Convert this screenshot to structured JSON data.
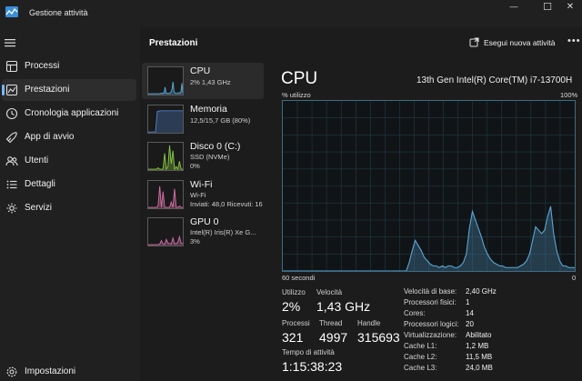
{
  "window": {
    "title": "Gestione attività",
    "controls": {
      "minimize": "—",
      "maximize": "☐",
      "close": "✕"
    }
  },
  "sidebar": {
    "items": [
      {
        "label": "Processi",
        "icon": "processes-icon"
      },
      {
        "label": "Prestazioni",
        "icon": "performance-icon",
        "active": true
      },
      {
        "label": "Cronologia applicazioni",
        "icon": "history-icon"
      },
      {
        "label": "App di avvio",
        "icon": "startup-icon"
      },
      {
        "label": "Utenti",
        "icon": "users-icon"
      },
      {
        "label": "Dettagli",
        "icon": "details-icon"
      },
      {
        "label": "Servizi",
        "icon": "services-icon"
      }
    ],
    "settings": {
      "label": "Impostazioni",
      "icon": "gear-icon"
    }
  },
  "header": {
    "title": "Prestazioni",
    "run_task": "Esegui nuova attività",
    "more": "•••"
  },
  "resources": [
    {
      "name": "CPU",
      "sub": [
        "2% 1,43 GHz"
      ],
      "color": "#5aa7d6",
      "active": true,
      "trend": [
        0,
        0,
        0,
        0,
        0,
        0,
        0,
        0,
        0,
        0,
        0,
        0,
        0,
        0,
        2,
        1,
        1,
        3,
        2,
        25,
        3,
        2,
        1,
        1,
        2,
        3,
        8,
        20,
        45,
        10,
        3,
        2,
        1,
        2,
        3,
        4,
        2,
        8,
        40,
        3
      ]
    },
    {
      "name": "Memoria",
      "sub": [
        "12,5/15,7 GB (80%)"
      ],
      "color": "#4f7fc6",
      "trend": [
        0,
        0,
        0,
        0,
        0,
        78,
        79,
        80,
        80,
        80,
        80,
        80,
        80,
        80,
        80,
        80,
        80,
        80,
        80,
        80
      ]
    },
    {
      "name": "Disco 0 (C:)",
      "sub": [
        "SSD (NVMe)",
        "0%"
      ],
      "color": "#86c342",
      "trend": [
        0,
        0,
        0,
        0,
        0,
        0,
        5,
        0,
        0,
        0,
        60,
        0,
        10,
        90,
        20,
        70,
        0,
        10,
        0,
        30,
        0,
        0
      ]
    },
    {
      "name": "Wi-Fi",
      "sub": [
        "Wi-Fi",
        "Inviati: 48,0 Ricevuti: 16"
      ],
      "color": "#d16fa2",
      "trend": [
        0,
        0,
        0,
        0,
        0,
        0,
        5,
        80,
        0,
        60,
        0,
        0,
        0,
        0,
        20,
        0,
        70,
        0,
        0,
        5,
        0,
        0
      ]
    },
    {
      "name": "GPU 0",
      "sub": [
        "Intel(R) Iris(R) Xe G...",
        "3%"
      ],
      "color": "#cf6fa8",
      "trend": [
        0,
        0,
        0,
        0,
        0,
        0,
        0,
        2,
        15,
        3,
        2,
        20,
        6,
        4,
        3,
        25,
        4,
        3,
        10,
        30,
        5,
        4
      ]
    }
  ],
  "detail": {
    "title": "CPU",
    "model": "13th Gen Intel(R) Core(TM) i7-13700H",
    "y_label": "% utilizzo",
    "y_max": "100%",
    "x_label": "60 secondi",
    "x_min": "0",
    "graph_color": "#5aa7d6",
    "series": [
      0,
      0,
      0,
      0,
      0,
      0,
      0,
      0,
      0,
      0,
      0,
      0,
      0,
      0,
      0,
      0,
      0,
      0,
      0,
      0,
      0,
      0,
      0,
      0,
      0,
      0,
      0,
      0,
      0,
      0,
      0,
      0,
      0,
      0,
      0,
      0,
      0,
      0,
      0,
      0,
      0,
      0,
      5,
      12,
      18,
      15,
      12,
      8,
      6,
      4,
      3,
      3,
      2,
      3,
      2,
      3,
      3,
      2,
      2,
      3,
      5,
      10,
      25,
      35,
      30,
      25,
      20,
      14,
      10,
      7,
      5,
      4,
      3,
      3,
      2,
      2,
      2,
      2,
      2,
      3,
      4,
      6,
      10,
      18,
      26,
      24,
      22,
      24,
      32,
      38,
      22,
      12,
      6,
      3,
      3,
      2,
      2,
      2
    ],
    "stats": {
      "utilizzo": {
        "label": "Utilizzo",
        "value": "2%"
      },
      "velocita": {
        "label": "Velocità",
        "value": "1,43 GHz"
      },
      "processi": {
        "label": "Processi",
        "value": "321"
      },
      "thread": {
        "label": "Thread",
        "value": "4997"
      },
      "handle": {
        "label": "Handle",
        "value": "315693"
      },
      "tempo": {
        "label": "Tempo di attività",
        "value": "1:15:38:23"
      }
    },
    "specs": [
      {
        "k": "Velocità di base:",
        "v": "2,40 GHz"
      },
      {
        "k": "Processori fisici:",
        "v": "1"
      },
      {
        "k": "Cores:",
        "v": "14"
      },
      {
        "k": "Processori logici:",
        "v": "20"
      },
      {
        "k": "Virtualizzazione:",
        "v": "Abilitato"
      },
      {
        "k": "Cache L1:",
        "v": "1,2 MB"
      },
      {
        "k": "Cache L2:",
        "v": "11,5 MB"
      },
      {
        "k": "Cache L3:",
        "v": "24,0 MB"
      }
    ]
  }
}
